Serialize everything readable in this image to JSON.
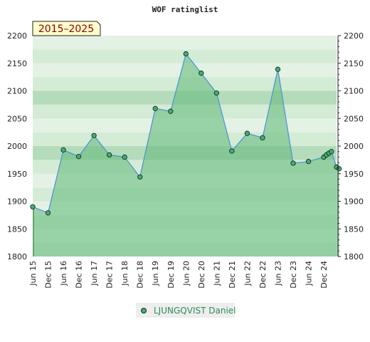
{
  "chart_data": {
    "type": "area",
    "title": "WOF ratinglist",
    "period_badge": "2015–2025",
    "ylim": [
      1800,
      2200
    ],
    "yticks": [
      1800,
      1850,
      1900,
      1950,
      2000,
      2050,
      2100,
      2150,
      2200
    ],
    "grid": true,
    "legend_position": "bottom-center",
    "x_tick_labels": [
      "Jun 15",
      "Dec 15",
      "Jun 16",
      "Dec 16",
      "Jun 17",
      "Dec 17",
      "Jun 18",
      "Dec 18",
      "Jun 19",
      "Dec 19",
      "Jun 20",
      "Dec 20",
      "Jun 21",
      "Dec 21",
      "Jun 22",
      "Dec 22",
      "Jun 23",
      "Dec 23",
      "Jun 24",
      "Dec 24"
    ],
    "series": [
      {
        "name": "LJUNGQVIST Daniel",
        "color": "#4a90d9",
        "marker_color": "#3cb371",
        "fill_color": "#5cb876",
        "points": [
          {
            "x": "2015-06",
            "y": 1890
          },
          {
            "x": "2015-12",
            "y": 1879
          },
          {
            "x": "2016-06",
            "y": 1993
          },
          {
            "x": "2016-12",
            "y": 1981
          },
          {
            "x": "2017-06",
            "y": 2019
          },
          {
            "x": "2017-12",
            "y": 1984
          },
          {
            "x": "2018-06",
            "y": 1980
          },
          {
            "x": "2018-12",
            "y": 1944
          },
          {
            "x": "2019-06",
            "y": 2068
          },
          {
            "x": "2019-12",
            "y": 2063
          },
          {
            "x": "2020-06",
            "y": 2167
          },
          {
            "x": "2020-12",
            "y": 2132
          },
          {
            "x": "2021-06",
            "y": 2096
          },
          {
            "x": "2021-12",
            "y": 1991
          },
          {
            "x": "2022-06",
            "y": 2023
          },
          {
            "x": "2022-12",
            "y": 2015
          },
          {
            "x": "2023-06",
            "y": 2139
          },
          {
            "x": "2023-12",
            "y": 1969
          },
          {
            "x": "2024-06",
            "y": 1972
          },
          {
            "x": "2024-12",
            "y": 1980
          },
          {
            "x": "2025-01",
            "y": 1984
          },
          {
            "x": "2025-02",
            "y": 1987
          },
          {
            "x": "2025-03",
            "y": 1990
          },
          {
            "x": "2025-05",
            "y": 1962
          },
          {
            "x": "2025-06",
            "y": 1959
          }
        ]
      }
    ]
  }
}
